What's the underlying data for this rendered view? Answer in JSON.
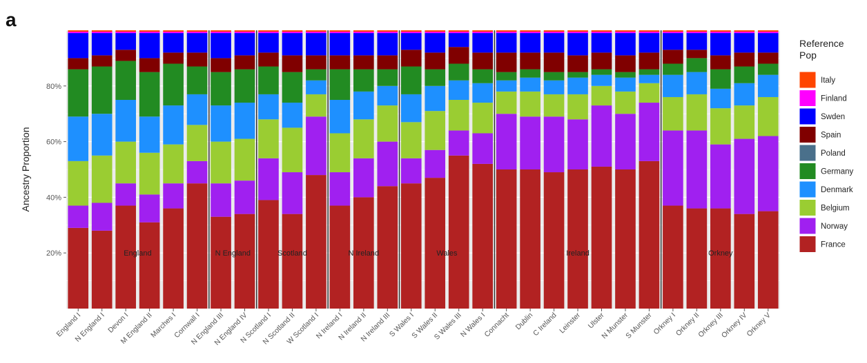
{
  "panel_label": "a",
  "chart_data": {
    "type": "bar",
    "stacked": true,
    "ylabel": "Ancestry Proportion",
    "ylim": [
      0,
      1.0
    ],
    "yticks": [
      {
        "value": 0.2,
        "label": "20%"
      },
      {
        "value": 0.4,
        "label": "40%"
      },
      {
        "value": 0.6,
        "label": "60%"
      },
      {
        "value": 0.8,
        "label": "80%"
      }
    ],
    "grid": true,
    "legend_position": "right",
    "legend_title": "Reference Pop",
    "categories": [
      "England I",
      "N England I",
      "Devon I",
      "M England II",
      "Marches I",
      "Cornwall I",
      "N England III",
      "N England IV",
      "N Scotland I",
      "N Scotland II",
      "W Scotland I",
      "N Ireland I",
      "N Ireland II",
      "N Ireland III",
      "S Wales I",
      "S Wales II",
      "S Wales III",
      "N Wales I",
      "Connacht",
      "Dublin",
      "C Ireland",
      "Leinster",
      "Ulster",
      "N Munster",
      "S Munster",
      "Orkney I",
      "Orkney II",
      "Orkney III",
      "Orkney IV",
      "Orkney V"
    ],
    "groups": [
      {
        "label": "England",
        "start": 0,
        "end": 5
      },
      {
        "label": "N England",
        "start": 6,
        "end": 7
      },
      {
        "label": "Scotland",
        "start": 8,
        "end": 10
      },
      {
        "label": "N Ireland",
        "start": 11,
        "end": 13
      },
      {
        "label": "Wales",
        "start": 14,
        "end": 17
      },
      {
        "label": "Ireland",
        "start": 18,
        "end": 24
      },
      {
        "label": "Orkney",
        "start": 25,
        "end": 29
      }
    ],
    "series": [
      {
        "name": "France",
        "color": "#b22222",
        "values": [
          0.29,
          0.28,
          0.37,
          0.31,
          0.36,
          0.45,
          0.33,
          0.34,
          0.39,
          0.34,
          0.48,
          0.37,
          0.4,
          0.44,
          0.45,
          0.47,
          0.55,
          0.52,
          0.5,
          0.5,
          0.49,
          0.5,
          0.51,
          0.5,
          0.53,
          0.37,
          0.36,
          0.36,
          0.34,
          0.35
        ]
      },
      {
        "name": "Norway",
        "color": "#a020f0",
        "values": [
          0.08,
          0.1,
          0.08,
          0.1,
          0.09,
          0.08,
          0.12,
          0.12,
          0.15,
          0.15,
          0.21,
          0.12,
          0.14,
          0.16,
          0.09,
          0.1,
          0.09,
          0.11,
          0.2,
          0.19,
          0.2,
          0.18,
          0.22,
          0.2,
          0.21,
          0.27,
          0.28,
          0.23,
          0.27,
          0.27
        ]
      },
      {
        "name": "Belgium",
        "color": "#9acd32",
        "values": [
          0.16,
          0.17,
          0.15,
          0.15,
          0.14,
          0.13,
          0.15,
          0.15,
          0.14,
          0.16,
          0.08,
          0.14,
          0.14,
          0.13,
          0.13,
          0.14,
          0.11,
          0.11,
          0.08,
          0.09,
          0.08,
          0.09,
          0.07,
          0.08,
          0.07,
          0.12,
          0.13,
          0.13,
          0.12,
          0.14
        ]
      },
      {
        "name": "Denmark",
        "color": "#1e90ff",
        "values": [
          0.16,
          0.15,
          0.15,
          0.13,
          0.14,
          0.11,
          0.13,
          0.13,
          0.09,
          0.09,
          0.05,
          0.12,
          0.1,
          0.07,
          0.1,
          0.09,
          0.07,
          0.07,
          0.04,
          0.05,
          0.05,
          0.06,
          0.04,
          0.05,
          0.03,
          0.08,
          0.08,
          0.07,
          0.08,
          0.08
        ]
      },
      {
        "name": "Germany",
        "color": "#228b22",
        "values": [
          0.17,
          0.17,
          0.14,
          0.16,
          0.15,
          0.1,
          0.12,
          0.12,
          0.1,
          0.11,
          0.04,
          0.11,
          0.08,
          0.06,
          0.1,
          0.06,
          0.06,
          0.05,
          0.03,
          0.03,
          0.03,
          0.02,
          0.02,
          0.02,
          0.02,
          0.04,
          0.05,
          0.07,
          0.06,
          0.04
        ]
      },
      {
        "name": "Poland",
        "color": "#4a708b",
        "values": [
          0,
          0,
          0,
          0,
          0,
          0,
          0,
          0,
          0,
          0,
          0,
          0,
          0,
          0,
          0,
          0,
          0,
          0,
          0,
          0,
          0,
          0,
          0,
          0,
          0,
          0,
          0,
          0,
          0,
          0
        ]
      },
      {
        "name": "Spain",
        "color": "#800000",
        "values": [
          0.04,
          0.04,
          0.04,
          0.05,
          0.04,
          0.05,
          0.05,
          0.05,
          0.05,
          0.06,
          0.05,
          0.05,
          0.05,
          0.05,
          0.06,
          0.06,
          0.06,
          0.06,
          0.07,
          0.06,
          0.07,
          0.06,
          0.06,
          0.06,
          0.06,
          0.05,
          0.03,
          0.05,
          0.05,
          0.04
        ]
      },
      {
        "name": "Swden",
        "color": "#0000ff",
        "values": [
          0.09,
          0.08,
          0.06,
          0.09,
          0.07,
          0.07,
          0.09,
          0.08,
          0.07,
          0.08,
          0.08,
          0.08,
          0.08,
          0.08,
          0.06,
          0.07,
          0.05,
          0.07,
          0.07,
          0.07,
          0.07,
          0.08,
          0.07,
          0.08,
          0.07,
          0.06,
          0.06,
          0.08,
          0.07,
          0.07
        ]
      },
      {
        "name": "Finland",
        "color": "#ff00ff",
        "values": [
          0.005,
          0.005,
          0.005,
          0.005,
          0.005,
          0.005,
          0.005,
          0.005,
          0.005,
          0.005,
          0.005,
          0.005,
          0.005,
          0.005,
          0.005,
          0.005,
          0.005,
          0.005,
          0.005,
          0.005,
          0.005,
          0.005,
          0.005,
          0.005,
          0.005,
          0.005,
          0.005,
          0.005,
          0.005,
          0.005
        ]
      },
      {
        "name": "Italy",
        "color": "#ff4500",
        "values": [
          0.005,
          0.005,
          0.005,
          0.005,
          0.005,
          0.005,
          0.005,
          0.005,
          0.005,
          0.005,
          0.005,
          0.005,
          0.005,
          0.005,
          0.005,
          0.005,
          0.005,
          0.005,
          0.005,
          0.005,
          0.005,
          0.005,
          0.005,
          0.005,
          0.005,
          0.005,
          0.005,
          0.005,
          0.005,
          0.005
        ]
      }
    ],
    "legend_order": [
      "Italy",
      "Finland",
      "Swden",
      "Spain",
      "Poland",
      "Germany",
      "Denmark",
      "Belgium",
      "Norway",
      "France"
    ]
  }
}
